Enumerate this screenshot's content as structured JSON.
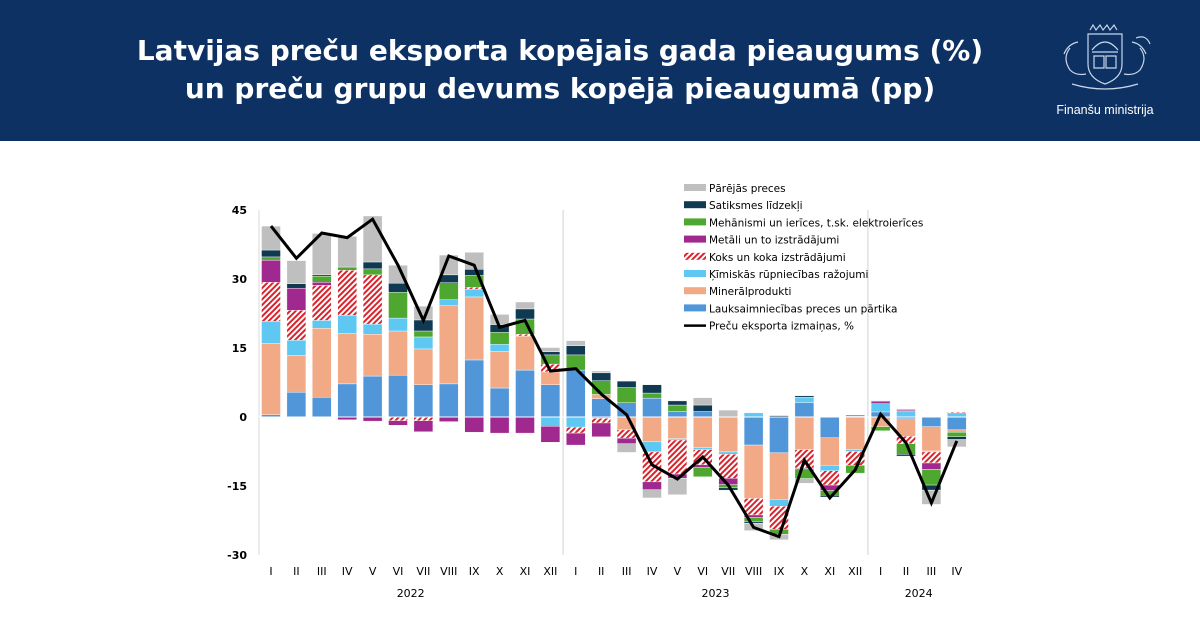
{
  "header": {
    "title_line1": "Latvijas preču eksporta kopējais gada pieaugums (%)",
    "title_line2": "un preču grupu devums kopējā pieaugumā (pp)",
    "ministry": "Finanšu ministrija",
    "background_color": "#0d3163"
  },
  "chart_data": {
    "type": "bar",
    "stacked": true,
    "title": "Latvijas preču eksporta kopējais gada pieaugums (%) un preču grupu devums kopējā pieaugumā (pp)",
    "xlabel": "",
    "ylabel": "",
    "ylim": [
      -30,
      45
    ],
    "yticks": [
      -30,
      -15,
      0,
      15,
      30,
      45
    ],
    "grid": false,
    "legend_position": "top-right",
    "categories": [
      "I",
      "II",
      "III",
      "IV",
      "V",
      "VI",
      "VII",
      "VIII",
      "IX",
      "X",
      "XI",
      "XII",
      "I",
      "II",
      "III",
      "IV",
      "V",
      "VI",
      "VII",
      "VIII",
      "IX",
      "X",
      "XI",
      "XII",
      "I",
      "II",
      "III",
      "IV"
    ],
    "years": [
      {
        "label": "2022",
        "start": 0,
        "end": 11
      },
      {
        "label": "2023",
        "start": 12,
        "end": 23
      },
      {
        "label": "2024",
        "start": 24,
        "end": 27
      }
    ],
    "series": [
      {
        "name": "Lauksaimniecības preces un pārtika",
        "color": "#5096d8",
        "values": [
          0.5,
          5.4,
          4.3,
          7.2,
          8.9,
          9.1,
          7,
          7.2,
          12.4,
          6.3,
          10.2,
          7,
          10.2,
          4,
          3.1,
          4.1,
          1.2,
          1.2,
          0,
          -6.1,
          -7.8,
          3.1,
          -4.5,
          0.2,
          1.1,
          -0.4,
          -2.1,
          -2.8
        ]
      },
      {
        "name": "Minerālprodukti",
        "color": "#f2a985",
        "values": [
          15.5,
          8,
          15,
          11,
          9.1,
          9.6,
          7.8,
          17,
          13.7,
          8,
          7.4,
          2.8,
          0,
          0.9,
          -2.8,
          -5.4,
          -4.7,
          -6.7,
          -7.6,
          -11.6,
          -10.1,
          -7.1,
          -6,
          -7.1,
          -2.1,
          -3.8,
          -5.3,
          -0.5
        ]
      },
      {
        "name": "Ķīmiskās rūpniecības ražojumi",
        "color": "#5ec8f2",
        "values": [
          4.8,
          3.3,
          1.7,
          3.9,
          2.2,
          2.8,
          2.6,
          1.3,
          1.7,
          1.5,
          0,
          -2,
          -2.2,
          -0.3,
          0,
          -2.2,
          -0.3,
          -0.4,
          -0.5,
          0.9,
          -1.5,
          1.2,
          -1.2,
          -0.4,
          1.8,
          1.2,
          -0.2,
          0.9
        ]
      },
      {
        "name": "Koks un koka izstrādājumi",
        "color": "#d9232d",
        "pattern": "hatch",
        "values": [
          8.5,
          6.5,
          7.6,
          9.8,
          10.7,
          -0.8,
          -0.8,
          0,
          0.4,
          0,
          0.4,
          1.7,
          -1.3,
          -1,
          -1.8,
          -6.5,
          -7.4,
          -3.3,
          -5.2,
          -3.6,
          -5,
          -4,
          -3.1,
          -3,
          0,
          -1.6,
          -2.4,
          0.2
        ]
      },
      {
        "name": "Metāli un to izstrādājumi",
        "color": "#a0298f",
        "values": [
          4.8,
          4.8,
          0.7,
          -0.6,
          -0.9,
          -1,
          -2.4,
          -1,
          -3.3,
          -3.5,
          -3.5,
          -3.5,
          -2.6,
          -3,
          -1.2,
          -1.7,
          -0.9,
          -0.6,
          -1.4,
          -0.5,
          0,
          -0.2,
          -1.2,
          0,
          0.4,
          0.3,
          -1.4,
          0
        ]
      },
      {
        "name": "Mehānismi un ierīces, t.sk. elektroierīces",
        "color": "#4ea72e",
        "values": [
          0.7,
          0,
          1.3,
          0.7,
          1.3,
          5.6,
          1.3,
          3.7,
          2.6,
          2.6,
          3.3,
          2,
          3.3,
          3,
          3.3,
          1.1,
          1.4,
          -2,
          -0.7,
          -1,
          -1.1,
          -2.1,
          -1,
          -1.7,
          -0.9,
          -2.3,
          -3.4,
          -1
        ]
      },
      {
        "name": "Satiksmes līdzekļi",
        "color": "#103a52",
        "values": [
          1.5,
          1,
          0.3,
          0,
          1.5,
          2,
          2.4,
          1.7,
          1.3,
          1.7,
          2.2,
          0.7,
          2,
          1.7,
          1.4,
          1.8,
          0.9,
          1.4,
          -0.5,
          -0.3,
          0.3,
          0.3,
          -0.4,
          0.2,
          0.2,
          -0.4,
          -1.1,
          -0.6
        ]
      },
      {
        "name": "Pārējās preces",
        "color": "#bfbfbf",
        "values": [
          5.2,
          5,
          9,
          6.7,
          10,
          3.9,
          3,
          4.3,
          3.7,
          2.2,
          1.5,
          0.9,
          1.1,
          0.4,
          -1.9,
          -1.8,
          -3.6,
          1.6,
          1.5,
          -1.6,
          -1.2,
          -1,
          0,
          0,
          0,
          0.3,
          -3.1,
          -1.6
        ]
      }
    ],
    "line": {
      "name": "Preču eksporta izmaiņas, %",
      "color": "#000000",
      "values": [
        41.5,
        34.5,
        40,
        39,
        43,
        33,
        21,
        35,
        33,
        19.5,
        21,
        10,
        10.5,
        5,
        0.5,
        -10.4,
        -13.5,
        -8.7,
        -14.8,
        -24,
        -26,
        -9.4,
        -17.6,
        -11.5,
        0.6,
        -5.6,
        -18.7,
        -5.2
      ]
    }
  }
}
